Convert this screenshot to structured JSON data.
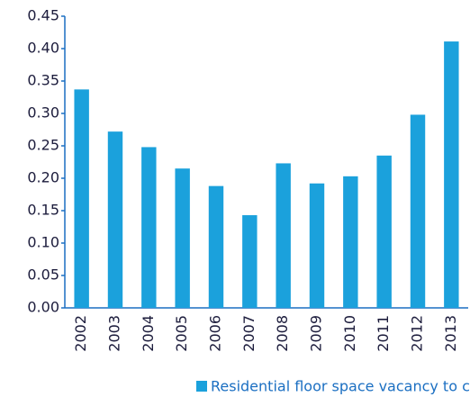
{
  "chart_data": {
    "type": "bar",
    "categories": [
      "2002",
      "2003",
      "2004",
      "2005",
      "2006",
      "2007",
      "2008",
      "2009",
      "2010",
      "2011",
      "2012",
      "2013"
    ],
    "values": [
      0.337,
      0.272,
      0.248,
      0.215,
      0.188,
      0.143,
      0.223,
      0.192,
      0.203,
      0.235,
      0.298,
      0.411
    ],
    "series_name": "Residential floor space vacancy to completed",
    "color": "#1ba1dc",
    "ylim": [
      0,
      0.45
    ],
    "yticks": [
      {
        "value": 0,
        "label": "0.00"
      },
      0.05,
      {
        "value": 0.1,
        "label": "0.10"
      },
      0.15,
      {
        "value": 0.2,
        "label": "0.20"
      },
      0.25,
      {
        "value": 0.3,
        "label": "0.30"
      },
      0.35,
      {
        "value": 0.4,
        "label": "0.40"
      },
      0.45
    ],
    "grid": false
  }
}
